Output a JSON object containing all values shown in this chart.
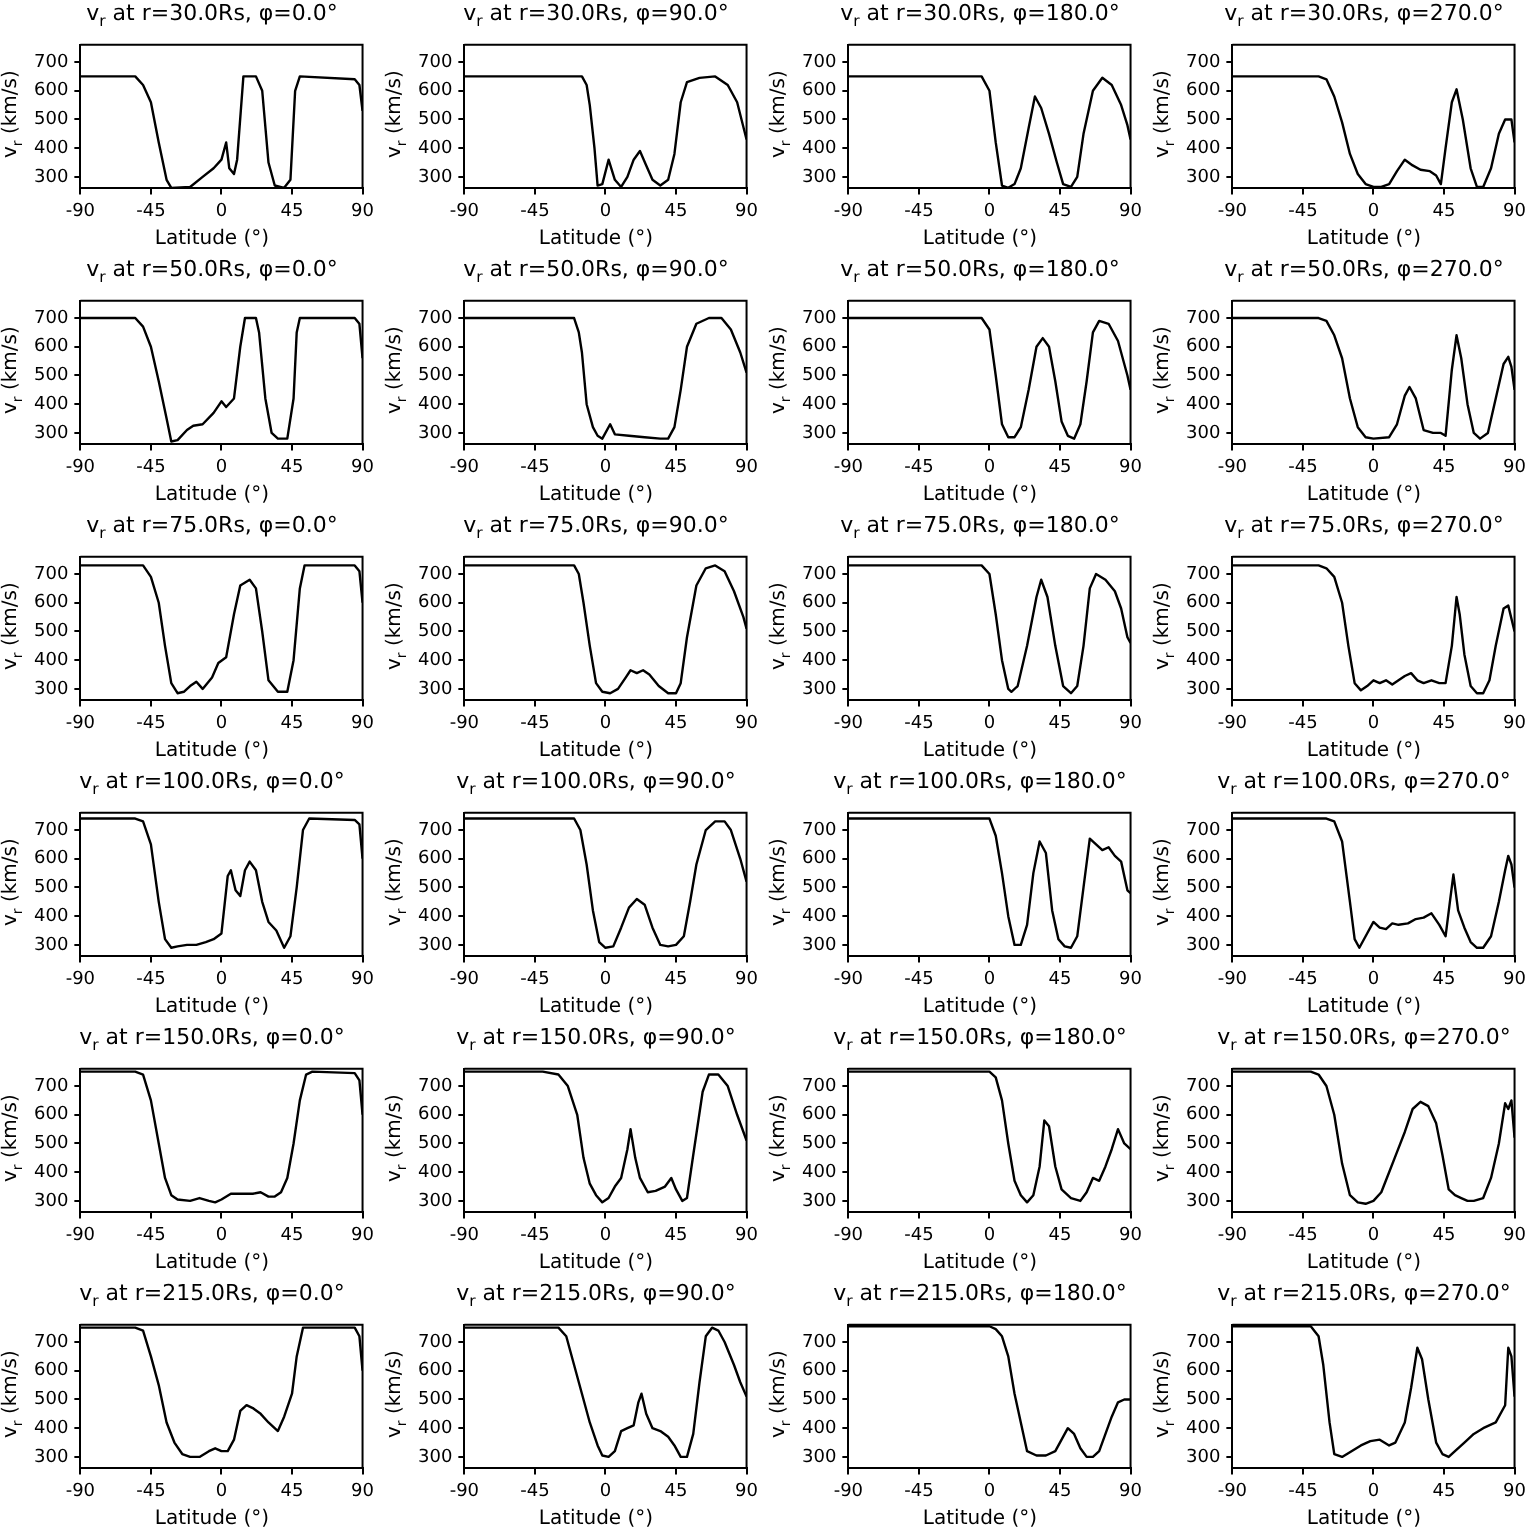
{
  "chart_data": [
    {
      "type": "line",
      "title": "v$_{r}$ at r=30.0Rs, φ=0.0°",
      "xlabel": "Latitude (°)",
      "ylabel": "v$_{r}$ (km/s)",
      "xlim": [
        -90,
        90
      ],
      "xticks": [
        -90,
        -45,
        0,
        45,
        90
      ],
      "ylim": [
        260,
        760
      ],
      "yticks": [
        300,
        400,
        500,
        600,
        700
      ],
      "series": [
        {
          "color": "#000000",
          "x": [
            -90,
            -55,
            -50,
            -45,
            -40,
            -35,
            -32,
            -20,
            -12,
            -5,
            0,
            3,
            5,
            8,
            10,
            14,
            22,
            26,
            30,
            34,
            40,
            44,
            47,
            50,
            85,
            88,
            90
          ],
          "values": [
            650,
            650,
            620,
            560,
            420,
            290,
            262,
            265,
            300,
            330,
            360,
            420,
            330,
            310,
            360,
            650,
            650,
            600,
            350,
            270,
            262,
            290,
            600,
            650,
            640,
            620,
            530
          ]
        }
      ]
    },
    {
      "type": "line",
      "title": "v$_{r}$ at r=30.0Rs, φ=90.0°",
      "xlabel": "Latitude (°)",
      "ylabel": "v$_{r}$ (km/s)",
      "xlim": [
        -90,
        90
      ],
      "xticks": [
        -90,
        -45,
        0,
        45,
        90
      ],
      "ylim": [
        260,
        760
      ],
      "yticks": [
        300,
        400,
        500,
        600,
        700
      ],
      "series": [
        {
          "color": "#000000",
          "x": [
            -90,
            -15,
            -12,
            -10,
            -7,
            -5,
            -2,
            2,
            6,
            10,
            14,
            18,
            22,
            26,
            30,
            35,
            40,
            44,
            48,
            52,
            60,
            70,
            78,
            84,
            90
          ],
          "values": [
            650,
            650,
            620,
            550,
            400,
            270,
            275,
            360,
            290,
            265,
            300,
            360,
            390,
            340,
            290,
            270,
            290,
            380,
            560,
            630,
            645,
            650,
            620,
            560,
            430
          ]
        }
      ]
    },
    {
      "type": "line",
      "title": "v$_{r}$ at r=30.0Rs, φ=180.0°",
      "xlabel": "Latitude (°)",
      "ylabel": "v$_{r}$ (km/s)",
      "xlim": [
        -90,
        90
      ],
      "xticks": [
        -90,
        -45,
        0,
        45,
        90
      ],
      "ylim": [
        260,
        760
      ],
      "yticks": [
        300,
        400,
        500,
        600,
        700
      ],
      "series": [
        {
          "color": "#000000",
          "x": [
            -90,
            -5,
            0,
            4,
            8,
            12,
            16,
            20,
            25,
            29,
            33,
            38,
            43,
            47,
            52,
            56,
            60,
            66,
            72,
            78,
            84,
            88,
            90
          ],
          "values": [
            650,
            650,
            600,
            420,
            270,
            262,
            275,
            330,
            470,
            580,
            540,
            450,
            350,
            275,
            265,
            300,
            450,
            600,
            645,
            620,
            550,
            480,
            430
          ]
        }
      ]
    },
    {
      "type": "line",
      "title": "v$_{r}$ at r=30.0Rs, φ=270.0°",
      "xlabel": "Latitude (°)",
      "ylabel": "v$_{r}$ (km/s)",
      "xlim": [
        -90,
        90
      ],
      "xticks": [
        -90,
        -45,
        0,
        45,
        90
      ],
      "ylim": [
        260,
        760
      ],
      "yticks": [
        300,
        400,
        500,
        600,
        700
      ],
      "series": [
        {
          "color": "#000000",
          "x": [
            -90,
            -35,
            -30,
            -25,
            -20,
            -15,
            -10,
            -5,
            0,
            5,
            10,
            15,
            20,
            25,
            30,
            36,
            40,
            43,
            46,
            50,
            53,
            57,
            62,
            66,
            70,
            75,
            80,
            84,
            88,
            90
          ],
          "values": [
            650,
            650,
            640,
            580,
            490,
            380,
            310,
            275,
            265,
            265,
            275,
            320,
            360,
            340,
            325,
            320,
            305,
            275,
            400,
            560,
            605,
            500,
            330,
            265,
            265,
            330,
            450,
            500,
            500,
            420
          ]
        }
      ]
    },
    {
      "type": "line",
      "title": "v$_{r}$ at r=50.0Rs, φ=0.0°",
      "xlabel": "Latitude (°)",
      "ylabel": "v$_{r}$ (km/s)",
      "xlim": [
        -90,
        90
      ],
      "xticks": [
        -90,
        -45,
        0,
        45,
        90
      ],
      "ylim": [
        260,
        760
      ],
      "yticks": [
        300,
        400,
        500,
        600,
        700
      ],
      "series": [
        {
          "color": "#000000",
          "x": [
            -90,
            -55,
            -50,
            -45,
            -40,
            -35,
            -32,
            -28,
            -22,
            -18,
            -12,
            -5,
            0,
            3,
            8,
            12,
            15,
            22,
            24,
            28,
            32,
            36,
            42,
            46,
            48,
            50,
            85,
            88,
            90
          ],
          "values": [
            700,
            700,
            670,
            600,
            480,
            350,
            270,
            275,
            310,
            325,
            330,
            370,
            410,
            390,
            420,
            600,
            700,
            700,
            650,
            420,
            300,
            280,
            280,
            420,
            650,
            700,
            700,
            680,
            560
          ]
        }
      ]
    },
    {
      "type": "line",
      "title": "v$_{r}$ at r=50.0Rs, φ=90.0°",
      "xlabel": "Latitude (°)",
      "ylabel": "v$_{r}$ (km/s)",
      "xlim": [
        -90,
        90
      ],
      "xticks": [
        -90,
        -45,
        0,
        45,
        90
      ],
      "ylim": [
        260,
        760
      ],
      "yticks": [
        300,
        400,
        500,
        600,
        700
      ],
      "series": [
        {
          "color": "#000000",
          "x": [
            -90,
            -20,
            -17,
            -15,
            -12,
            -8,
            -5,
            -2,
            3,
            6,
            15,
            25,
            35,
            40,
            44,
            48,
            52,
            58,
            66,
            74,
            80,
            86,
            90
          ],
          "values": [
            700,
            700,
            650,
            580,
            400,
            320,
            290,
            280,
            330,
            295,
            290,
            285,
            280,
            280,
            320,
            450,
            600,
            680,
            700,
            700,
            660,
            580,
            510
          ]
        }
      ]
    },
    {
      "type": "line",
      "title": "v$_{r}$ at r=50.0Rs, φ=180.0°",
      "xlabel": "Latitude (°)",
      "ylabel": "v$_{r}$ (km/s)",
      "xlim": [
        -90,
        90
      ],
      "xticks": [
        -90,
        -45,
        0,
        45,
        90
      ],
      "ylim": [
        260,
        760
      ],
      "yticks": [
        300,
        400,
        500,
        600,
        700
      ],
      "series": [
        {
          "color": "#000000",
          "x": [
            -90,
            -5,
            0,
            4,
            8,
            12,
            16,
            20,
            25,
            30,
            34,
            38,
            42,
            46,
            50,
            54,
            58,
            62,
            66,
            70,
            76,
            82,
            88,
            90
          ],
          "values": [
            700,
            700,
            660,
            500,
            330,
            285,
            285,
            320,
            450,
            600,
            630,
            600,
            480,
            340,
            290,
            280,
            330,
            480,
            650,
            690,
            680,
            620,
            500,
            450
          ]
        }
      ]
    },
    {
      "type": "line",
      "title": "v$_{r}$ at r=50.0Rs, φ=270.0°",
      "xlabel": "Latitude (°)",
      "ylabel": "v$_{r}$ (km/s)",
      "xlim": [
        -90,
        90
      ],
      "xticks": [
        -90,
        -45,
        0,
        45,
        90
      ],
      "ylim": [
        260,
        760
      ],
      "yticks": [
        300,
        400,
        500,
        600,
        700
      ],
      "series": [
        {
          "color": "#000000",
          "x": [
            -90,
            -35,
            -30,
            -25,
            -20,
            -15,
            -10,
            -5,
            0,
            10,
            15,
            20,
            23,
            27,
            32,
            38,
            43,
            46,
            50,
            53,
            56,
            60,
            64,
            68,
            73,
            78,
            83,
            86,
            88,
            90
          ],
          "values": [
            700,
            700,
            690,
            640,
            560,
            420,
            320,
            285,
            280,
            285,
            330,
            430,
            460,
            420,
            310,
            300,
            300,
            290,
            520,
            640,
            560,
            400,
            300,
            280,
            300,
            420,
            540,
            565,
            530,
            450
          ]
        }
      ]
    },
    {
      "type": "line",
      "title": "v$_{r}$ at r=75.0Rs, φ=0.0°",
      "xlabel": "Latitude (°)",
      "ylabel": "v$_{r}$ (km/s)",
      "xlim": [
        -90,
        90
      ],
      "xticks": [
        -90,
        -45,
        0,
        45,
        90
      ],
      "ylim": [
        260,
        760
      ],
      "yticks": [
        300,
        400,
        500,
        600,
        700
      ],
      "series": [
        {
          "color": "#000000",
          "x": [
            -90,
            -50,
            -45,
            -40,
            -36,
            -32,
            -28,
            -24,
            -20,
            -16,
            -12,
            -6,
            -2,
            3,
            8,
            12,
            18,
            22,
            26,
            30,
            36,
            42,
            46,
            50,
            53,
            85,
            88,
            90
          ],
          "values": [
            730,
            730,
            690,
            600,
            450,
            320,
            285,
            290,
            310,
            325,
            300,
            340,
            390,
            410,
            560,
            660,
            680,
            650,
            500,
            330,
            290,
            290,
            400,
            650,
            730,
            730,
            710,
            600
          ]
        }
      ]
    },
    {
      "type": "line",
      "title": "v$_{r}$ at r=75.0Rs, φ=90.0°",
      "xlabel": "Latitude (°)",
      "ylabel": "v$_{r}$ (km/s)",
      "xlim": [
        -90,
        90
      ],
      "xticks": [
        -90,
        -45,
        0,
        45,
        90
      ],
      "ylim": [
        260,
        760
      ],
      "yticks": [
        300,
        400,
        500,
        600,
        700
      ],
      "series": [
        {
          "color": "#000000",
          "x": [
            -90,
            -20,
            -17,
            -14,
            -10,
            -6,
            -2,
            3,
            8,
            13,
            16,
            20,
            24,
            28,
            34,
            40,
            45,
            48,
            52,
            58,
            64,
            70,
            76,
            82,
            88,
            90
          ],
          "values": [
            730,
            730,
            700,
            600,
            450,
            320,
            290,
            285,
            300,
            340,
            365,
            355,
            365,
            350,
            310,
            285,
            285,
            320,
            480,
            660,
            720,
            730,
            710,
            640,
            550,
            510
          ]
        }
      ]
    },
    {
      "type": "line",
      "title": "v$_{r}$ at r=75.0Rs, φ=180.0°",
      "xlabel": "Latitude (°)",
      "ylabel": "v$_{r}$ (km/s)",
      "xlim": [
        -90,
        90
      ],
      "xticks": [
        -90,
        -45,
        0,
        45,
        90
      ],
      "ylim": [
        260,
        760
      ],
      "yticks": [
        300,
        400,
        500,
        600,
        700
      ],
      "series": [
        {
          "color": "#000000",
          "x": [
            -90,
            -5,
            0,
            4,
            8,
            12,
            14,
            18,
            24,
            30,
            33,
            37,
            42,
            47,
            52,
            56,
            60,
            64,
            68,
            74,
            80,
            84,
            88,
            90
          ],
          "values": [
            730,
            730,
            700,
            560,
            400,
            300,
            290,
            310,
            450,
            620,
            680,
            620,
            450,
            310,
            285,
            310,
            450,
            650,
            700,
            680,
            640,
            580,
            480,
            460
          ]
        }
      ]
    },
    {
      "type": "line",
      "title": "v$_{r}$ at r=75.0Rs, φ=270.0°",
      "xlabel": "Latitude (°)",
      "ylabel": "v$_{r}$ (km/s)",
      "xlim": [
        -90,
        90
      ],
      "xticks": [
        -90,
        -45,
        0,
        45,
        90
      ],
      "ylim": [
        260,
        760
      ],
      "yticks": [
        300,
        400,
        500,
        600,
        700
      ],
      "series": [
        {
          "color": "#000000",
          "x": [
            -90,
            -35,
            -30,
            -25,
            -20,
            -16,
            -12,
            -8,
            -4,
            0,
            4,
            8,
            12,
            16,
            20,
            24,
            28,
            32,
            37,
            42,
            46,
            50,
            53,
            55,
            58,
            62,
            66,
            70,
            74,
            78,
            83,
            86,
            90
          ],
          "values": [
            730,
            730,
            720,
            690,
            600,
            450,
            320,
            295,
            310,
            330,
            320,
            330,
            315,
            330,
            345,
            355,
            330,
            320,
            330,
            320,
            320,
            450,
            620,
            560,
            420,
            310,
            285,
            285,
            330,
            450,
            580,
            590,
            500
          ]
        }
      ]
    },
    {
      "type": "line",
      "title": "v$_{r}$ at r=100.0Rs, φ=0.0°",
      "xlabel": "Latitude (°)",
      "ylabel": "v$_{r}$ (km/s)",
      "xlim": [
        -90,
        90
      ],
      "xticks": [
        -90,
        -45,
        0,
        45,
        90
      ],
      "ylim": [
        260,
        760
      ],
      "yticks": [
        300,
        400,
        500,
        600,
        700
      ],
      "series": [
        {
          "color": "#000000",
          "x": [
            -90,
            -55,
            -50,
            -45,
            -40,
            -36,
            -32,
            -28,
            -22,
            -16,
            -10,
            -5,
            0,
            4,
            6,
            9,
            12,
            15,
            18,
            22,
            26,
            30,
            35,
            40,
            44,
            48,
            52,
            56,
            85,
            88,
            90
          ],
          "values": [
            740,
            740,
            730,
            650,
            450,
            320,
            290,
            295,
            300,
            300,
            310,
            320,
            340,
            540,
            560,
            490,
            470,
            560,
            590,
            560,
            450,
            380,
            350,
            290,
            330,
            500,
            700,
            740,
            735,
            720,
            600
          ]
        }
      ]
    },
    {
      "type": "line",
      "title": "v$_{r}$ at r=100.0Rs, φ=90.0°",
      "xlabel": "Latitude (°)",
      "ylabel": "v$_{r}$ (km/s)",
      "xlim": [
        -90,
        90
      ],
      "xticks": [
        -90,
        -45,
        0,
        45,
        90
      ],
      "ylim": [
        260,
        760
      ],
      "yticks": [
        300,
        400,
        500,
        600,
        700
      ],
      "series": [
        {
          "color": "#000000",
          "x": [
            -90,
            -20,
            -16,
            -12,
            -8,
            -4,
            0,
            5,
            10,
            15,
            20,
            25,
            30,
            35,
            40,
            45,
            50,
            54,
            58,
            64,
            70,
            76,
            80,
            86,
            90
          ],
          "values": [
            740,
            740,
            700,
            580,
            420,
            310,
            290,
            295,
            360,
            430,
            460,
            440,
            360,
            300,
            295,
            300,
            330,
            450,
            580,
            700,
            730,
            730,
            700,
            600,
            520
          ]
        }
      ]
    },
    {
      "type": "line",
      "title": "v$_{r}$ at r=100.0Rs, φ=180.0°",
      "xlabel": "Latitude (°)",
      "ylabel": "v$_{r}$ (km/s)",
      "xlim": [
        -90,
        90
      ],
      "xticks": [
        -90,
        -45,
        0,
        45,
        90
      ],
      "ylim": [
        260,
        760
      ],
      "yticks": [
        300,
        400,
        500,
        600,
        700
      ],
      "series": [
        {
          "color": "#000000",
          "x": [
            -90,
            0,
            4,
            8,
            12,
            16,
            20,
            24,
            28,
            32,
            36,
            40,
            44,
            48,
            52,
            56,
            60,
            64,
            68,
            72,
            76,
            80,
            84,
            88,
            90
          ],
          "values": [
            740,
            740,
            680,
            550,
            400,
            300,
            300,
            370,
            550,
            660,
            620,
            420,
            320,
            295,
            290,
            330,
            500,
            670,
            650,
            630,
            640,
            610,
            590,
            490,
            480
          ]
        }
      ]
    },
    {
      "type": "line",
      "title": "v$_{r}$ at r=100.0Rs, φ=270.0°",
      "xlabel": "Latitude (°)",
      "ylabel": "v$_{r}$ (km/s)",
      "xlim": [
        -90,
        90
      ],
      "xticks": [
        -90,
        -45,
        0,
        45,
        90
      ],
      "ylim": [
        260,
        760
      ],
      "yticks": [
        300,
        400,
        500,
        600,
        700
      ],
      "series": [
        {
          "color": "#000000",
          "x": [
            -90,
            -30,
            -25,
            -20,
            -15,
            -12,
            -9,
            -5,
            0,
            4,
            8,
            12,
            16,
            22,
            27,
            32,
            37,
            42,
            46,
            49,
            51,
            54,
            58,
            62,
            66,
            70,
            75,
            80,
            84,
            86,
            88,
            90
          ],
          "values": [
            740,
            740,
            730,
            660,
            450,
            320,
            290,
            330,
            380,
            360,
            355,
            375,
            370,
            375,
            390,
            395,
            410,
            370,
            330,
            460,
            545,
            420,
            360,
            310,
            290,
            290,
            330,
            450,
            560,
            610,
            580,
            500
          ]
        }
      ]
    },
    {
      "type": "line",
      "title": "v$_{r}$ at r=150.0Rs, φ=0.0°",
      "xlabel": "Latitude (°)",
      "ylabel": "v$_{r}$ (km/s)",
      "xlim": [
        -90,
        90
      ],
      "xticks": [
        -90,
        -45,
        0,
        45,
        90
      ],
      "ylim": [
        260,
        760
      ],
      "yticks": [
        300,
        400,
        500,
        600,
        700
      ],
      "series": [
        {
          "color": "#000000",
          "x": [
            -90,
            -55,
            -50,
            -45,
            -40,
            -36,
            -32,
            -28,
            -20,
            -14,
            -8,
            -4,
            0,
            6,
            14,
            20,
            25,
            30,
            34,
            38,
            42,
            46,
            50,
            54,
            58,
            85,
            88,
            90
          ],
          "values": [
            750,
            750,
            740,
            650,
            500,
            380,
            320,
            305,
            300,
            310,
            300,
            295,
            305,
            325,
            325,
            325,
            330,
            315,
            315,
            330,
            380,
            500,
            650,
            740,
            750,
            745,
            720,
            600
          ]
        }
      ]
    },
    {
      "type": "line",
      "title": "v$_{r}$ at r=150.0Rs, φ=90.0°",
      "xlabel": "Latitude (°)",
      "ylabel": "v$_{r}$ (km/s)",
      "xlim": [
        -90,
        90
      ],
      "xticks": [
        -90,
        -45,
        0,
        45,
        90
      ],
      "ylim": [
        260,
        760
      ],
      "yticks": [
        300,
        400,
        500,
        600,
        700
      ],
      "series": [
        {
          "color": "#000000",
          "x": [
            -90,
            -40,
            -30,
            -24,
            -18,
            -14,
            -10,
            -6,
            -2,
            2,
            6,
            10,
            14,
            16,
            19,
            22,
            27,
            32,
            38,
            42,
            45,
            49,
            52,
            56,
            62,
            66,
            72,
            78,
            84,
            90
          ],
          "values": [
            750,
            750,
            740,
            700,
            600,
            450,
            360,
            320,
            295,
            310,
            350,
            380,
            480,
            550,
            450,
            380,
            330,
            335,
            350,
            380,
            340,
            300,
            310,
            460,
            680,
            740,
            740,
            700,
            600,
            510
          ]
        }
      ]
    },
    {
      "type": "line",
      "title": "v$_{r}$ at r=150.0Rs, φ=180.0°",
      "xlabel": "Latitude (°)",
      "ylabel": "v$_{r}$ (km/s)",
      "xlim": [
        -90,
        90
      ],
      "xticks": [
        -90,
        -45,
        0,
        45,
        90
      ],
      "ylim": [
        260,
        760
      ],
      "yticks": [
        300,
        400,
        500,
        600,
        700
      ],
      "series": [
        {
          "color": "#000000",
          "x": [
            -90,
            0,
            4,
            8,
            12,
            16,
            20,
            24,
            28,
            32,
            35,
            38,
            42,
            46,
            52,
            58,
            62,
            66,
            70,
            74,
            78,
            82,
            86,
            90
          ],
          "values": [
            750,
            750,
            730,
            650,
            500,
            370,
            320,
            295,
            320,
            420,
            580,
            560,
            420,
            340,
            310,
            300,
            330,
            380,
            370,
            420,
            480,
            550,
            500,
            480
          ]
        }
      ]
    },
    {
      "type": "line",
      "title": "v$_{r}$ at r=150.0Rs, φ=270.0°",
      "xlabel": "Latitude (°)",
      "ylabel": "v$_{r}$ (km/s)",
      "xlim": [
        -90,
        90
      ],
      "xticks": [
        -90,
        -45,
        0,
        45,
        90
      ],
      "ylim": [
        260,
        760
      ],
      "yticks": [
        300,
        400,
        500,
        600,
        700
      ],
      "series": [
        {
          "color": "#000000",
          "x": [
            -90,
            -40,
            -35,
            -30,
            -25,
            -20,
            -15,
            -10,
            -5,
            0,
            5,
            10,
            15,
            20,
            25,
            30,
            35,
            40,
            44,
            48,
            52,
            56,
            60,
            64,
            70,
            75,
            80,
            84,
            86,
            88,
            90
          ],
          "values": [
            750,
            750,
            740,
            700,
            600,
            430,
            320,
            295,
            290,
            300,
            330,
            400,
            470,
            540,
            620,
            645,
            630,
            570,
            460,
            340,
            320,
            310,
            300,
            300,
            310,
            380,
            500,
            640,
            620,
            650,
            520
          ]
        }
      ]
    },
    {
      "type": "line",
      "title": "v$_{r}$ at r=215.0Rs, φ=0.0°",
      "xlabel": "Latitude (°)",
      "ylabel": "v$_{r}$ (km/s)",
      "xlim": [
        -90,
        90
      ],
      "xticks": [
        -90,
        -45,
        0,
        45,
        90
      ],
      "ylim": [
        260,
        760
      ],
      "yticks": [
        300,
        400,
        500,
        600,
        700
      ],
      "series": [
        {
          "color": "#000000",
          "x": [
            -90,
            -55,
            -50,
            -45,
            -40,
            -35,
            -30,
            -25,
            -20,
            -14,
            -8,
            -4,
            0,
            4,
            8,
            12,
            16,
            20,
            25,
            30,
            36,
            40,
            45,
            48,
            52,
            85,
            88,
            90
          ],
          "values": [
            750,
            750,
            740,
            650,
            550,
            420,
            350,
            310,
            300,
            300,
            320,
            330,
            320,
            320,
            360,
            460,
            480,
            470,
            450,
            420,
            390,
            440,
            520,
            650,
            750,
            750,
            720,
            600
          ]
        }
      ]
    },
    {
      "type": "line",
      "title": "v$_{r}$ at r=215.0Rs, φ=90.0°",
      "xlabel": "Latitude (°)",
      "ylabel": "v$_{r}$ (km/s)",
      "xlim": [
        -90,
        90
      ],
      "xticks": [
        -90,
        -45,
        0,
        45,
        90
      ],
      "ylim": [
        260,
        760
      ],
      "yticks": [
        300,
        400,
        500,
        600,
        700
      ],
      "series": [
        {
          "color": "#000000",
          "x": [
            -90,
            -30,
            -25,
            -20,
            -15,
            -10,
            -5,
            -2,
            2,
            6,
            10,
            14,
            18,
            21,
            23,
            26,
            30,
            35,
            40,
            44,
            48,
            52,
            56,
            60,
            64,
            68,
            72,
            76,
            82,
            86,
            90
          ],
          "values": [
            750,
            750,
            720,
            620,
            520,
            420,
            340,
            305,
            300,
            320,
            390,
            400,
            410,
            490,
            520,
            450,
            400,
            390,
            370,
            340,
            300,
            300,
            380,
            560,
            720,
            750,
            740,
            700,
            620,
            560,
            510
          ]
        }
      ]
    },
    {
      "type": "line",
      "title": "v$_{r}$ at r=215.0Rs, φ=180.0°",
      "xlabel": "Latitude (°)",
      "ylabel": "v$_{r}$ (km/s)",
      "xlim": [
        -90,
        90
      ],
      "xticks": [
        -90,
        -45,
        0,
        45,
        90
      ],
      "ylim": [
        260,
        760
      ],
      "yticks": [
        300,
        400,
        500,
        600,
        700
      ],
      "series": [
        {
          "color": "#000000",
          "x": [
            -90,
            0,
            4,
            8,
            12,
            16,
            20,
            24,
            30,
            36,
            42,
            46,
            50,
            54,
            58,
            62,
            66,
            70,
            74,
            78,
            82,
            86,
            90
          ],
          "values": [
            755,
            755,
            745,
            720,
            650,
            520,
            420,
            320,
            305,
            305,
            320,
            360,
            400,
            380,
            330,
            300,
            300,
            320,
            380,
            440,
            490,
            500,
            500
          ]
        }
      ]
    },
    {
      "type": "line",
      "title": "v$_{r}$ at r=215.0Rs, φ=270.0°",
      "xlabel": "Latitude (°)",
      "ylabel": "v$_{r}$ (km/s)",
      "xlim": [
        -90,
        90
      ],
      "xticks": [
        -90,
        -45,
        0,
        45,
        90
      ],
      "ylim": [
        260,
        760
      ],
      "yticks": [
        300,
        400,
        500,
        600,
        700
      ],
      "series": [
        {
          "color": "#000000",
          "x": [
            -90,
            -40,
            -35,
            -32,
            -28,
            -25,
            -20,
            -14,
            -8,
            -2,
            4,
            10,
            14,
            20,
            24,
            28,
            31,
            35,
            40,
            44,
            48,
            52,
            58,
            64,
            70,
            78,
            84,
            86,
            88,
            90
          ],
          "values": [
            755,
            755,
            720,
            620,
            420,
            310,
            300,
            320,
            340,
            355,
            360,
            340,
            350,
            420,
            540,
            680,
            640,
            500,
            350,
            310,
            300,
            320,
            350,
            380,
            400,
            420,
            480,
            680,
            650,
            510
          ]
        }
      ]
    }
  ]
}
